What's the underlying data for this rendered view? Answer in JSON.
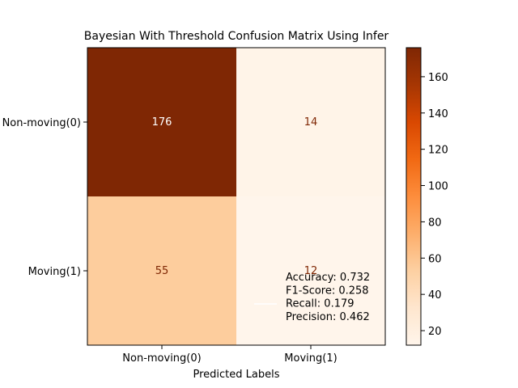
{
  "chart_data": {
    "type": "heatmap",
    "title": "Bayesian With Threshold Confusion Matrix Using Infer",
    "xlabel": "Predicted Labels",
    "ylabel": "",
    "x_categories": [
      "Non-moving(0)",
      "Moving(1)"
    ],
    "y_categories": [
      "Non-moving(0)",
      "Moving(1)"
    ],
    "values": [
      [
        176,
        14
      ],
      [
        55,
        12
      ]
    ],
    "colormap": "Oranges",
    "color_range": [
      12,
      176
    ],
    "colorbar_ticks": [
      20,
      40,
      60,
      80,
      100,
      120,
      140,
      160
    ],
    "annotation_lines": [
      "Accuracy: 0.732",
      "F1-Score: 0.258",
      "Recall: 0.179",
      "Precision: 0.462"
    ],
    "legend_placement": "lower-right"
  },
  "colors": {
    "colormap_stops": [
      "#fff5eb",
      "#fee6ce",
      "#fdd0a2",
      "#fdae6b",
      "#fd8d3c",
      "#f16913",
      "#d94801",
      "#a63603",
      "#7f2704"
    ],
    "text_on_dark": "#ffffff",
    "text_on_light": "#7f2704"
  }
}
